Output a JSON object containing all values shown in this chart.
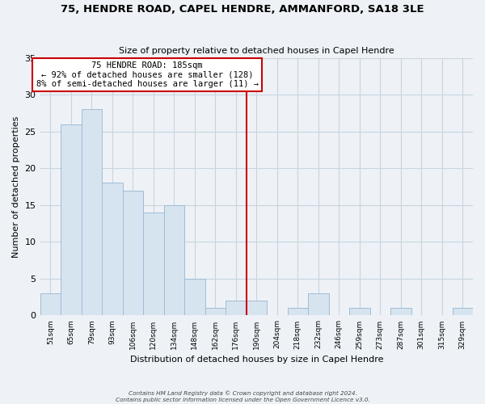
{
  "title": "75, HENDRE ROAD, CAPEL HENDRE, AMMANFORD, SA18 3LE",
  "subtitle": "Size of property relative to detached houses in Capel Hendre",
  "xlabel": "Distribution of detached houses by size in Capel Hendre",
  "ylabel": "Number of detached properties",
  "bin_labels": [
    "51sqm",
    "65sqm",
    "79sqm",
    "93sqm",
    "106sqm",
    "120sqm",
    "134sqm",
    "148sqm",
    "162sqm",
    "176sqm",
    "190sqm",
    "204sqm",
    "218sqm",
    "232sqm",
    "246sqm",
    "259sqm",
    "273sqm",
    "287sqm",
    "301sqm",
    "315sqm",
    "329sqm"
  ],
  "bin_values": [
    3,
    26,
    28,
    18,
    17,
    14,
    15,
    5,
    1,
    2,
    2,
    0,
    1,
    3,
    0,
    1,
    0,
    1,
    0,
    0,
    1
  ],
  "bar_color": "#d6e4f0",
  "bar_edge_color": "#a0bcd4",
  "vline_x_index": 9.5,
  "annotation_title": "75 HENDRE ROAD: 185sqm",
  "annotation_line1": "← 92% of detached houses are smaller (128)",
  "annotation_line2": "8% of semi-detached houses are larger (11) →",
  "annotation_box_facecolor": "#ffffff",
  "annotation_box_edgecolor": "#cc0000",
  "vline_color": "#cc0000",
  "ylim": [
    0,
    35
  ],
  "yticks": [
    0,
    5,
    10,
    15,
    20,
    25,
    30,
    35
  ],
  "footer_line1": "Contains HM Land Registry data © Crown copyright and database right 2024.",
  "footer_line2": "Contains public sector information licensed under the Open Government Licence v3.0.",
  "background_color": "#eef2f7",
  "grid_color": "#c8d4e0"
}
